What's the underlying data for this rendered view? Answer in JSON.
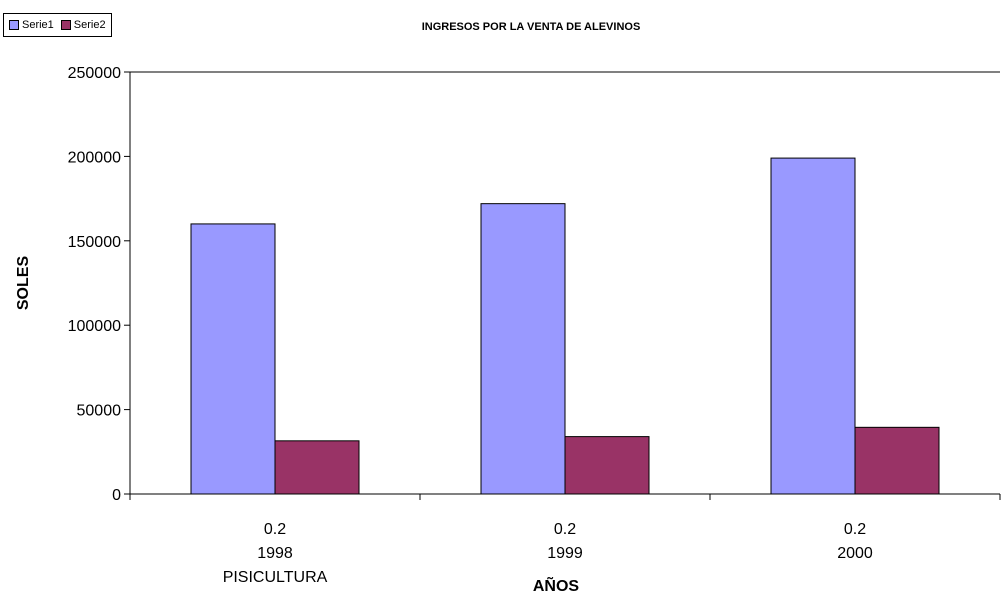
{
  "chart_data": {
    "type": "bar",
    "title": "INGRESOS POR LA VENTA DE ALEVINOS",
    "ylabel": "SOLES",
    "xlabel": "AÑOS",
    "ylim": [
      0,
      250000
    ],
    "yticks": [
      "0",
      "50000",
      "100000",
      "150000",
      "200000",
      "250000"
    ],
    "categories": [
      {
        "line1": "0.2",
        "line2": "1998",
        "line3": "PISICULTURA"
      },
      {
        "line1": "0.2",
        "line2": "1999",
        "line3": ""
      },
      {
        "line1": "0.2",
        "line2": "2000",
        "line3": ""
      }
    ],
    "series": [
      {
        "name": "Serie1",
        "color": "#9999ff",
        "values": [
          160000,
          172000,
          199000
        ]
      },
      {
        "name": "Serie2",
        "color": "#993366",
        "values": [
          31500,
          34000,
          39500
        ]
      }
    ],
    "grid": false,
    "legend_position": "top-left"
  }
}
